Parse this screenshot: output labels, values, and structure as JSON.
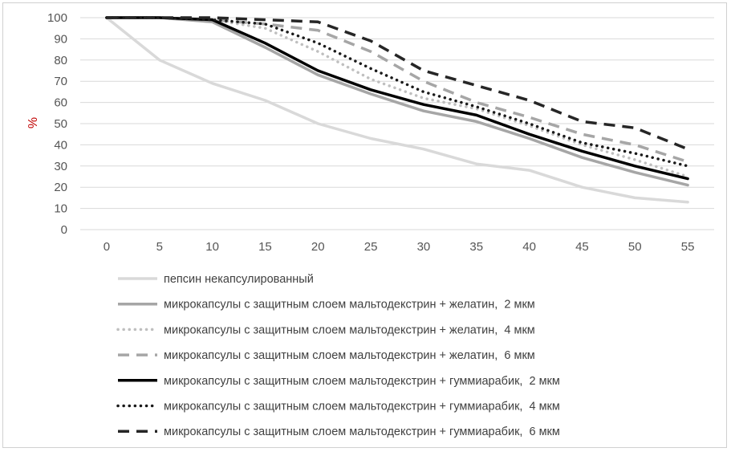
{
  "chart_data": {
    "type": "line",
    "title": "",
    "xlabel": "",
    "ylabel": "%",
    "x": [
      0,
      5,
      10,
      15,
      20,
      25,
      30,
      35,
      40,
      45,
      50,
      55
    ],
    "ylim": [
      0,
      100
    ],
    "yticks": [
      0,
      10,
      20,
      30,
      40,
      50,
      60,
      70,
      80,
      90,
      100
    ],
    "grid": "horizontal",
    "legend_position": "bottom",
    "series": [
      {
        "name": "пепсин некапсулированный",
        "values": [
          100,
          80,
          69,
          61,
          50,
          43,
          38,
          31,
          28,
          20,
          15,
          13
        ],
        "color": "#d9d9d9",
        "dash": "solid",
        "width": 3.5
      },
      {
        "name": "микрокапсулы с защитным слоем мальтодекстрин + желатин,  2 мкм",
        "values": [
          100,
          100,
          98,
          86,
          73,
          64,
          56,
          51,
          43,
          34,
          27,
          21
        ],
        "color": "#a6a6a6",
        "dash": "solid",
        "width": 3.5
      },
      {
        "name": "микрокапсулы с защитным слоем мальтодекстрин + желатин,  4 мкм",
        "values": [
          100,
          100,
          99,
          95,
          84,
          71,
          62,
          57,
          49,
          40,
          33,
          25
        ],
        "color": "#bfbfbf",
        "dash": "dot",
        "width": 3.5
      },
      {
        "name": "микрокапсулы с защитным слоем мальтодекстрин + желатин,  6 мкм",
        "values": [
          100,
          100,
          99,
          97,
          94,
          84,
          70,
          60,
          53,
          45,
          40,
          32
        ],
        "color": "#a6a6a6",
        "dash": "dash",
        "width": 3.5
      },
      {
        "name": "микрокапсулы с защитным слоем мальтодекстрин + гуммиарабик,  2 мкм",
        "values": [
          100,
          100,
          99,
          88,
          75,
          66,
          59,
          54,
          45,
          37,
          30,
          24
        ],
        "color": "#000000",
        "dash": "solid",
        "width": 3.5
      },
      {
        "name": "микрокапсулы с защитным слоем мальтодекстрин + гуммиарабик,  4 мкм",
        "values": [
          100,
          100,
          99,
          97,
          88,
          76,
          65,
          58,
          50,
          41,
          36,
          30
        ],
        "color": "#1a1a1a",
        "dash": "dot",
        "width": 3.5
      },
      {
        "name": "микрокапсулы с защитным слоем мальтодекстрин + гуммиарабик,  6 мкм",
        "values": [
          100,
          100,
          100,
          99,
          98,
          89,
          75,
          68,
          61,
          51,
          48,
          38
        ],
        "color": "#262626",
        "dash": "dash",
        "width": 3.5
      }
    ]
  }
}
